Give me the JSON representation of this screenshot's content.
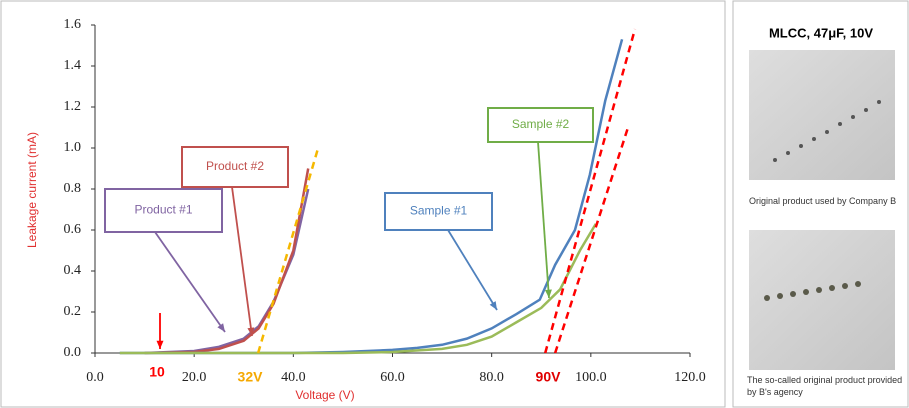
{
  "chart_data": {
    "type": "line",
    "xlabel": "Voltage (V)",
    "ylabel": "Leakage current (mA)",
    "xlim": [
      0,
      120
    ],
    "ylim": [
      0,
      1.6
    ],
    "xticks": [
      {
        "value": 0,
        "label": "0.0"
      },
      {
        "value": 20,
        "label": "20.0"
      },
      {
        "value": 40,
        "label": "40.0"
      },
      {
        "value": 60,
        "label": "60.0"
      },
      {
        "value": 80,
        "label": "80.0"
      },
      {
        "value": 100,
        "label": "100.0"
      },
      {
        "value": 120,
        "label": "120.0"
      }
    ],
    "yticks": [
      {
        "value": 0,
        "label": "0.0"
      },
      0.2,
      0.4,
      0.6,
      0.8,
      {
        "value": 1,
        "label": "1.0"
      },
      1.2,
      1.4,
      1.6
    ],
    "series": [
      {
        "name": "Product #1",
        "color": "#8064a2",
        "x": [
          10,
          20,
          25,
          30,
          33,
          36,
          40,
          43
        ],
        "values": [
          0,
          0.01,
          0.03,
          0.07,
          0.13,
          0.25,
          0.48,
          0.8
        ]
      },
      {
        "name": "Product #2",
        "color": "#c0504d",
        "x": [
          10,
          20,
          25,
          30,
          33,
          36,
          40,
          43
        ],
        "values": [
          0,
          0.005,
          0.02,
          0.06,
          0.12,
          0.24,
          0.5,
          0.9
        ]
      },
      {
        "name": "Sample #1",
        "color": "#4f81bd",
        "x": [
          5,
          40,
          50,
          60,
          65,
          70,
          75,
          80,
          85,
          89.7,
          92.8,
          96.8,
          99.8,
          102.9,
          106.3
        ],
        "values": [
          0,
          0,
          0.005,
          0.015,
          0.025,
          0.04,
          0.07,
          0.12,
          0.19,
          0.26,
          0.43,
          0.6,
          0.87,
          1.23,
          1.53
        ]
      },
      {
        "name": "Sample #2",
        "color": "#9bbb59",
        "x": [
          5,
          50,
          60,
          70,
          75,
          80,
          85,
          90,
          93.8,
          97.8,
          101
        ],
        "values": [
          0,
          0,
          0.005,
          0.02,
          0.04,
          0.08,
          0.15,
          0.22,
          0.31,
          0.5,
          0.63
        ]
      }
    ],
    "trend_lines": [
      {
        "color": "#f5b800",
        "x": [
          32.9,
          45
        ],
        "values": [
          0,
          1.0
        ]
      },
      {
        "color": "#ff0000",
        "x": [
          90.8,
          108.9
        ],
        "values": [
          0,
          1.58
        ]
      },
      {
        "color": "#ff0000",
        "x": [
          92.8,
          107.5
        ],
        "values": [
          0,
          1.1
        ]
      }
    ],
    "annotations": [
      {
        "text": "Product #1",
        "color": "#8064a2"
      },
      {
        "text": "Product #2",
        "color": "#c0504d"
      },
      {
        "text": "Sample #1",
        "color": "#4f81bd"
      },
      {
        "text": "Sample #2",
        "color": "#70ad47"
      },
      {
        "text": "10",
        "color": "#ff0000"
      },
      {
        "text": "32V",
        "color": "#f5a800"
      },
      {
        "text": "90V",
        "color": "#e00000"
      }
    ]
  },
  "panel": {
    "title": "MLCC, 47μF, 10V",
    "captions": [
      "Original product  used by Company  B",
      "The so-called original product provided by B's agency"
    ]
  }
}
